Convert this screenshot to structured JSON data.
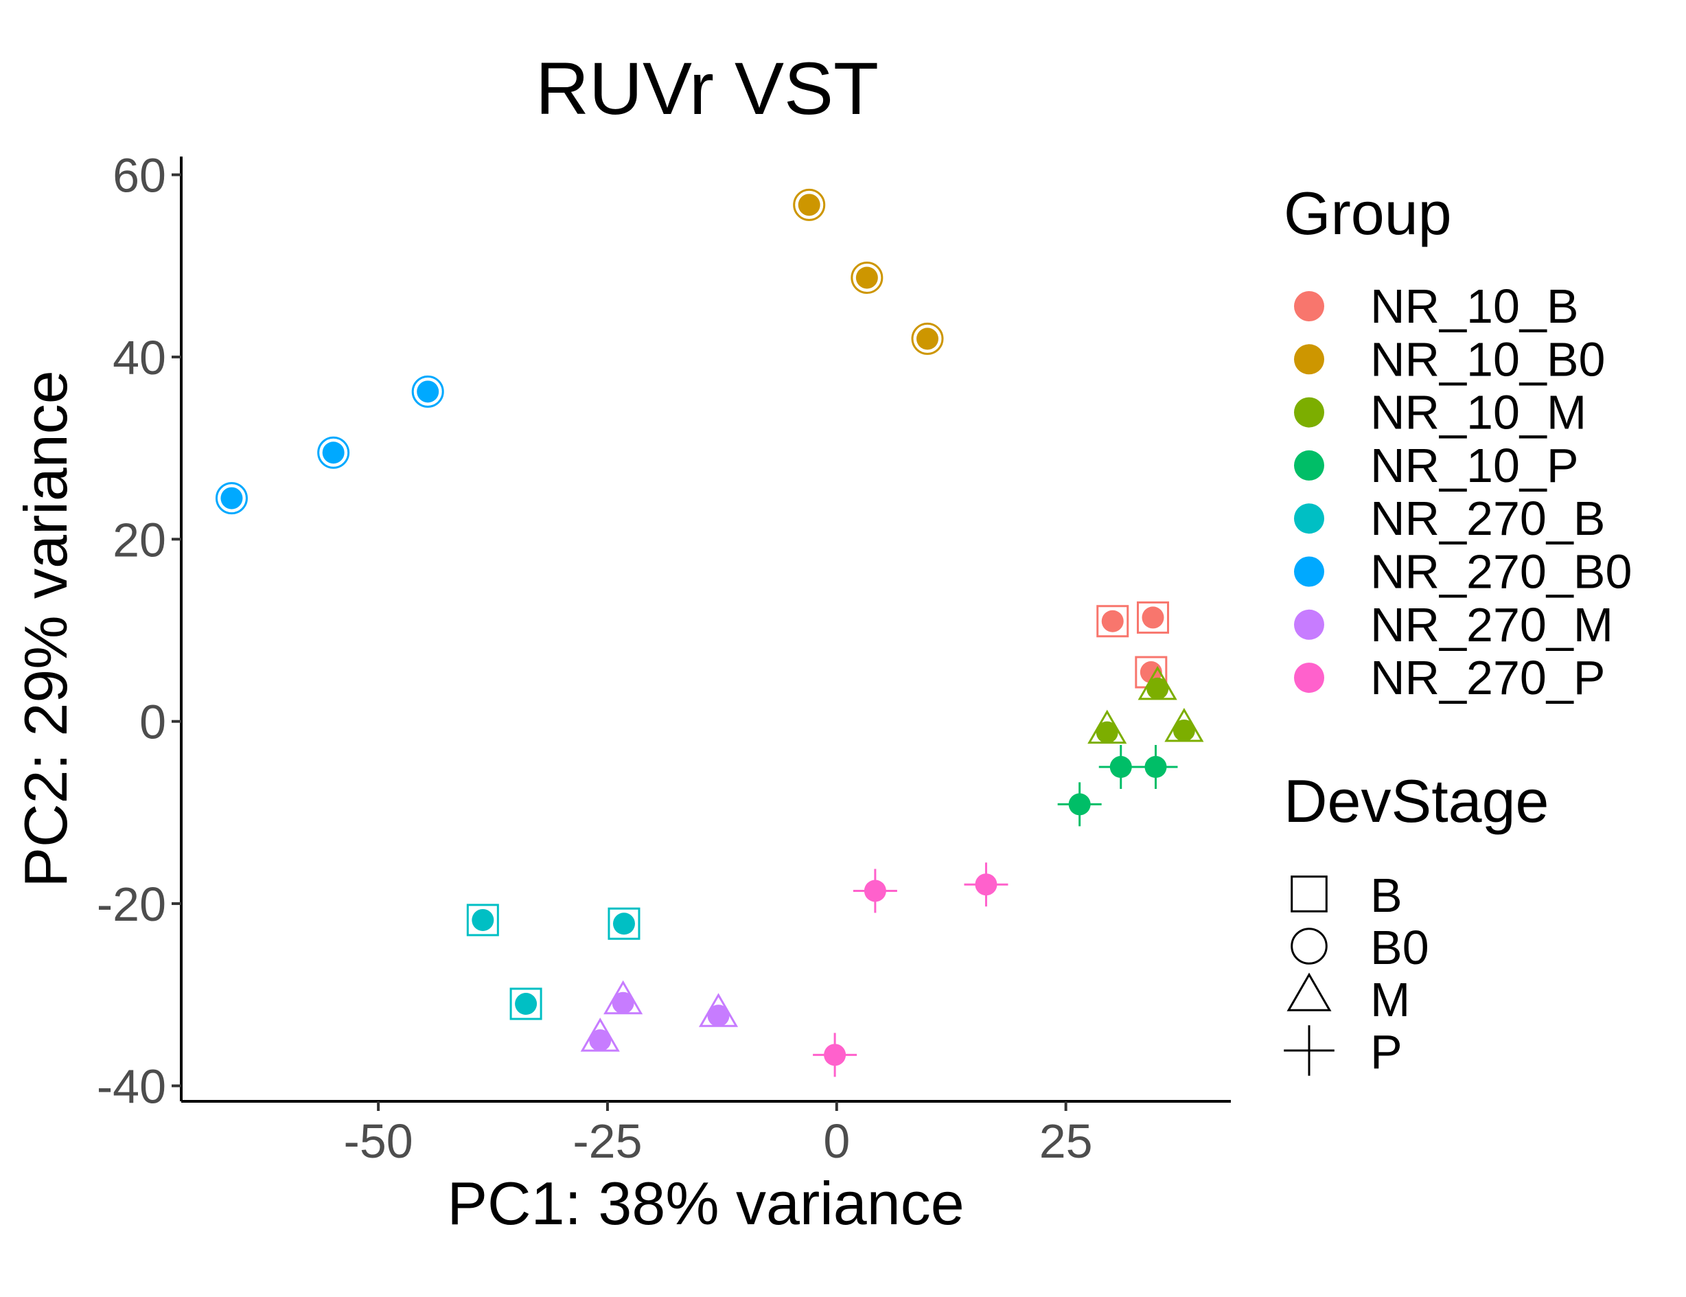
{
  "chart_data": {
    "type": "scatter",
    "title": "RUVr VST",
    "xlabel": "PC1: 38% variance",
    "ylabel": "PC2: 29% variance",
    "xlim": [
      -71.5,
      43.0
    ],
    "ylim": [
      -41.7,
      62.0
    ],
    "xticks": [
      {
        "value": -50,
        "label": "-50"
      },
      {
        "value": -25,
        "label": "-25"
      },
      {
        "value": 0,
        "label": "0"
      },
      {
        "value": 25,
        "label": "25"
      }
    ],
    "yticks": [
      {
        "value": -40,
        "label": "-40"
      },
      {
        "value": -20,
        "label": "-20"
      },
      {
        "value": 0,
        "label": "0"
      },
      {
        "value": 20,
        "label": "20"
      },
      {
        "value": 40,
        "label": "40"
      },
      {
        "value": 60,
        "label": "60"
      }
    ],
    "grid": false,
    "legend_position": "right",
    "legend_color_title": "Group",
    "legend_shape_title": "DevStage",
    "series": [
      {
        "name": "NR_10_B",
        "color": "#F8766D",
        "stage": "B",
        "points": [
          {
            "x": 30.1,
            "y": 11.0
          },
          {
            "x": 34.5,
            "y": 11.4
          },
          {
            "x": 34.3,
            "y": 5.4
          }
        ]
      },
      {
        "name": "NR_10_B0",
        "color": "#CD9600",
        "stage": "B0",
        "points": [
          {
            "x": -3.0,
            "y": 56.7
          },
          {
            "x": 3.3,
            "y": 48.7
          },
          {
            "x": 9.9,
            "y": 42.0
          }
        ]
      },
      {
        "name": "NR_10_M",
        "color": "#7CAE00",
        "stage": "M",
        "points": [
          {
            "x": 35.0,
            "y": 3.6
          },
          {
            "x": 29.5,
            "y": -1.2
          },
          {
            "x": 37.9,
            "y": -1.0
          }
        ]
      },
      {
        "name": "NR_10_P",
        "color": "#00BE67",
        "stage": "P",
        "points": [
          {
            "x": 31.0,
            "y": -5.0
          },
          {
            "x": 34.8,
            "y": -5.0
          },
          {
            "x": 26.5,
            "y": -9.1
          }
        ]
      },
      {
        "name": "NR_270_B",
        "color": "#00BFC4",
        "stage": "B",
        "points": [
          {
            "x": -38.6,
            "y": -21.8
          },
          {
            "x": -23.2,
            "y": -22.2
          },
          {
            "x": -33.9,
            "y": -31.0
          }
        ]
      },
      {
        "name": "NR_270_B0",
        "color": "#00A9FF",
        "stage": "B0",
        "points": [
          {
            "x": -66.0,
            "y": 24.5
          },
          {
            "x": -54.9,
            "y": 29.5
          },
          {
            "x": -44.6,
            "y": 36.2
          }
        ]
      },
      {
        "name": "NR_270_M",
        "color": "#C77CFF",
        "stage": "M",
        "points": [
          {
            "x": -23.3,
            "y": -30.9
          },
          {
            "x": -25.8,
            "y": -35.0
          },
          {
            "x": -12.9,
            "y": -32.3
          }
        ]
      },
      {
        "name": "NR_270_P",
        "color": "#FF61CC",
        "stage": "P",
        "points": [
          {
            "x": 4.2,
            "y": -18.6
          },
          {
            "x": 16.3,
            "y": -17.9
          },
          {
            "x": -0.2,
            "y": -36.6
          }
        ]
      }
    ],
    "shape_legend": [
      {
        "stage": "B",
        "shape": "square"
      },
      {
        "stage": "B0",
        "shape": "circle"
      },
      {
        "stage": "M",
        "shape": "triangle"
      },
      {
        "stage": "P",
        "shape": "plus"
      }
    ]
  }
}
